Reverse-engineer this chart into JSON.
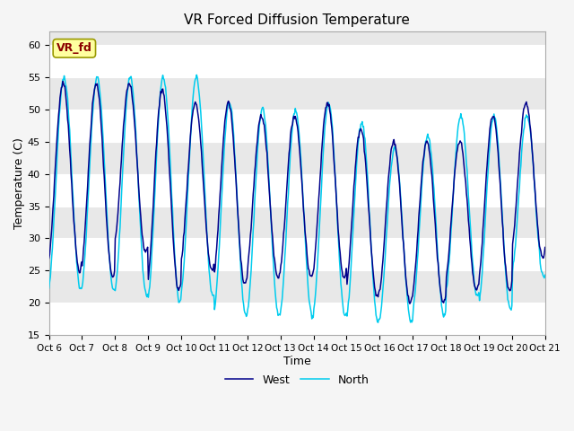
{
  "title": "VR Forced Diffusion Temperature",
  "xlabel": "Time",
  "ylabel": "Temperature (C)",
  "ylim": [
    15,
    62
  ],
  "xlim": [
    0,
    15
  ],
  "yticks": [
    15,
    20,
    25,
    30,
    35,
    40,
    45,
    50,
    55,
    60
  ],
  "xtick_labels": [
    "Oct 6",
    "Oct 7",
    "Oct 8",
    "Oct 9",
    "Oct 10",
    "Oct 11",
    "Oct 12",
    "Oct 13",
    "Oct 14",
    "Oct 15",
    "Oct 16",
    "Oct 17",
    "Oct 18",
    "Oct 19",
    "Oct 20",
    "Oct 21"
  ],
  "west_color": "#00008B",
  "north_color": "#00CCEE",
  "bg_color": "#E8E8E8",
  "grid_color": "#FFFFFF",
  "annotation_label": "VR_fd",
  "annotation_color": "#8B0000",
  "annotation_bg": "#FFFFA0",
  "west_peaks": [
    54,
    54,
    54,
    53,
    51,
    51,
    49,
    49,
    51,
    47,
    45,
    45,
    45,
    49,
    51
  ],
  "west_troughs": [
    25,
    24,
    28,
    22,
    25,
    23,
    24,
    24,
    24,
    21,
    20,
    20,
    22,
    22,
    27
  ],
  "north_peaks": [
    55,
    55,
    55,
    55,
    55,
    51,
    50,
    50,
    51,
    48,
    44,
    46,
    49,
    49,
    49
  ],
  "north_troughs": [
    22,
    22,
    21,
    20,
    21,
    18,
    18,
    18,
    18,
    17,
    17,
    18,
    21,
    19,
    24
  ]
}
